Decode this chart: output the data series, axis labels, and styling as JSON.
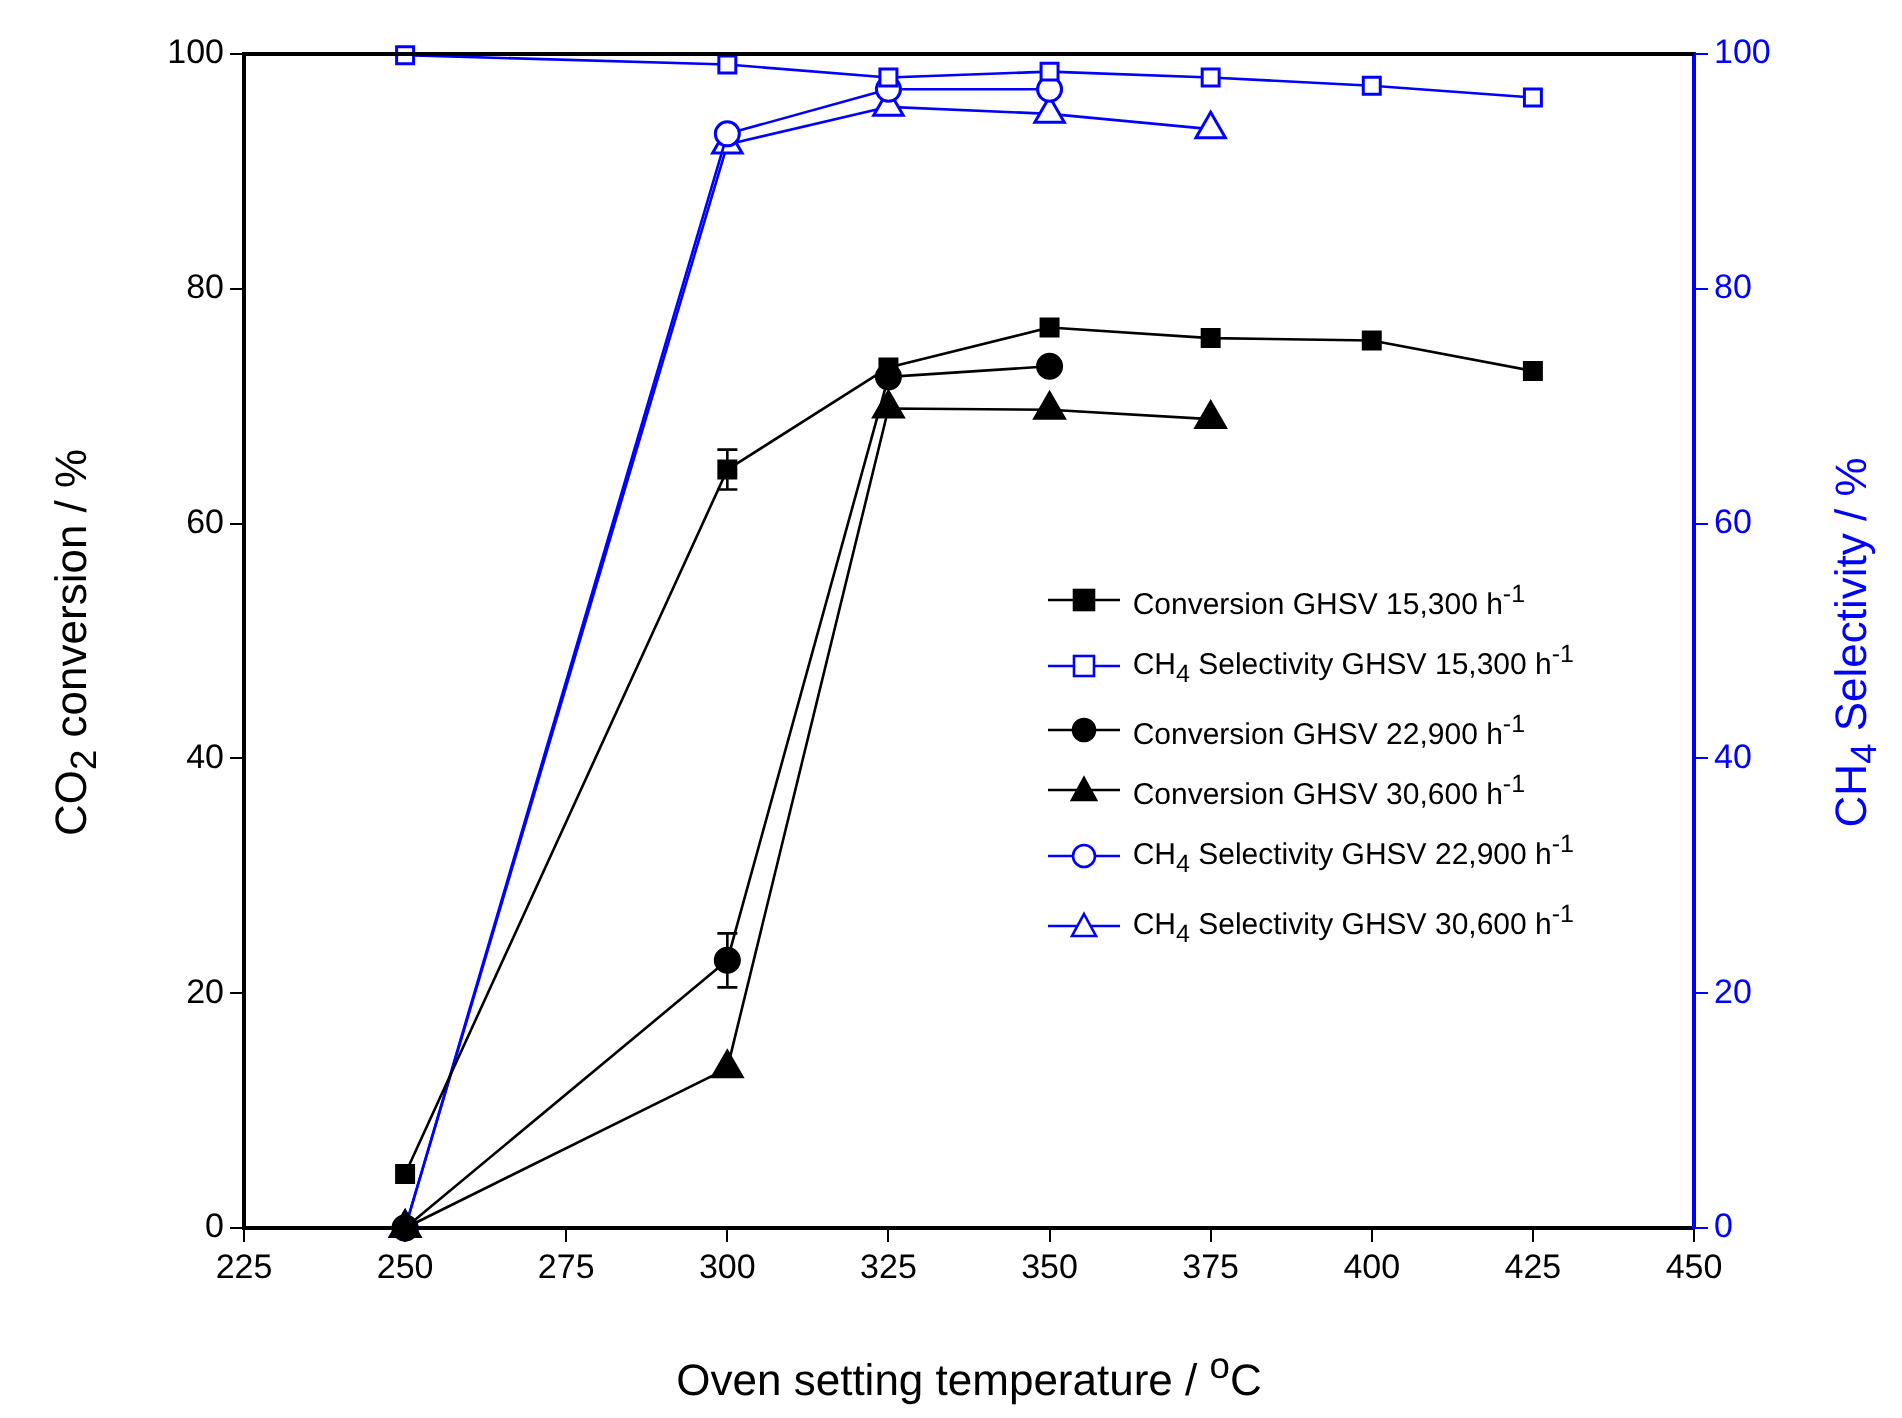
{
  "chart_data": {
    "type": "line",
    "xlabel": "Oven setting temperature / $^{o}$C",
    "ylabel": "CO$_{2}$ conversion / %",
    "y2label": "CH$_{4}$ Selectivity / %",
    "xlim": [
      225,
      450
    ],
    "xticks": [
      225,
      250,
      275,
      300,
      325,
      350,
      375,
      400,
      425,
      450
    ],
    "ylim": [
      0,
      100
    ],
    "yticks": [
      0,
      20,
      40,
      60,
      80,
      100
    ],
    "y2lim": [
      0,
      100
    ],
    "y2ticks": [
      0,
      20,
      40,
      60,
      80,
      100
    ],
    "grid": false,
    "legend": "right",
    "line_style": "solid",
    "series": [
      {
        "name": "Conversion GHSV 15,300 h$^{-1}$",
        "color": "#000000",
        "marker": "square",
        "x": [
          250,
          300,
          325,
          350,
          375,
          400,
          425
        ],
        "values": [
          4.6,
          64.6,
          73.3,
          76.7,
          75.8,
          75.6,
          73.0
        ],
        "errors": [
          null,
          1.7,
          null,
          null,
          null,
          null,
          null
        ]
      },
      {
        "name": "CH$_{4}$ Selectivity GHSV 15,300 h$^{-1}$",
        "color": "#0000ff",
        "marker": "square",
        "axis": "y2",
        "x": [
          250,
          300,
          325,
          350,
          375,
          400,
          425
        ],
        "values": [
          99.9,
          99.1,
          98.0,
          98.5,
          98.0,
          97.3,
          96.3
        ]
      },
      {
        "name": "Conversion GHSV 22,900 h$^{-1}$",
        "color": "#000000",
        "marker": "circle",
        "x": [
          250,
          300,
          325,
          350
        ],
        "values": [
          0,
          22.8,
          72.5,
          73.4
        ],
        "errors": [
          null,
          2.3,
          null,
          null
        ]
      },
      {
        "name": "Conversion GHSV 30,600 h$^{-1}$",
        "color": "#000000",
        "marker": "triangle",
        "x": [
          250,
          300,
          325,
          350,
          375
        ],
        "values": [
          0,
          13.6,
          69.8,
          69.7,
          68.9
        ]
      },
      {
        "name": "CH$_{4}$ Selectivity GHSV 22,900 h$^{-1}$",
        "color": "#0000ff",
        "marker": "circle",
        "axis": "y2",
        "x": [
          250,
          300,
          325,
          350
        ],
        "values": [
          0,
          93.2,
          97.0,
          97.0
        ]
      },
      {
        "name": "CH$_{4}$ Selectivity GHSV 30,600 h$^{-1}$",
        "color": "#0000ff",
        "marker": "triangle",
        "axis": "y2",
        "x": [
          250,
          300,
          325,
          350,
          375
        ],
        "values": [
          0,
          92.3,
          95.5,
          94.9,
          93.6
        ]
      }
    ]
  }
}
